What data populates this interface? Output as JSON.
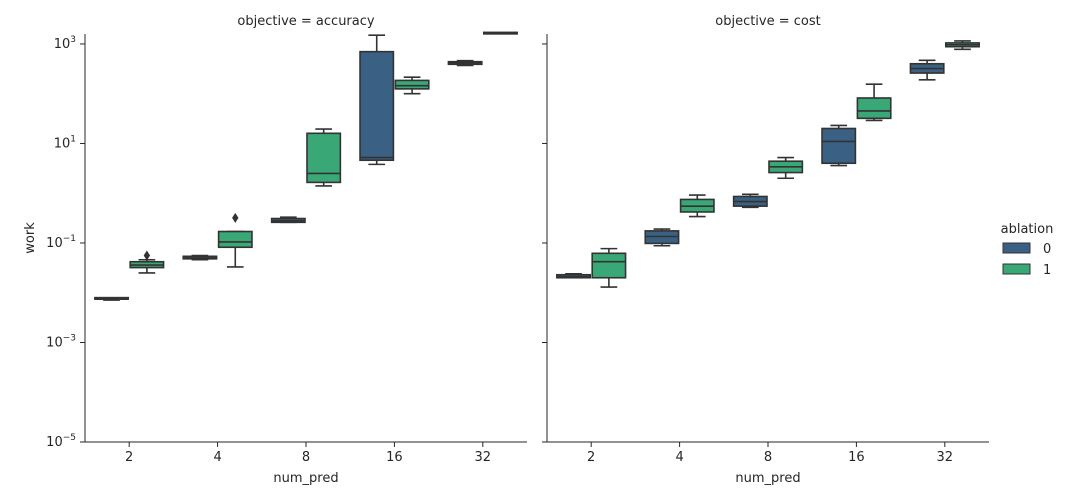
{
  "chart_data": {
    "type": "box",
    "y_scale": "log",
    "ylim_log10": [
      -5,
      3.2
    ],
    "y_ticks": [
      {
        "exp": -5,
        "label_base": "10",
        "label_exp": "−5"
      },
      {
        "exp": -3,
        "label_base": "10",
        "label_exp": "−3"
      },
      {
        "exp": -1,
        "label_base": "10",
        "label_exp": "−1"
      },
      {
        "exp": 1,
        "label_base": "10",
        "label_exp": "1"
      },
      {
        "exp": 3,
        "label_base": "10",
        "label_exp": "3"
      }
    ],
    "ylabel": "work",
    "xlabel": "num_pred",
    "categories": [
      "2",
      "4",
      "8",
      "16",
      "32"
    ],
    "legend": {
      "title": "ablation",
      "placement": "right",
      "entries": [
        {
          "label": "0",
          "color": "#3a6183"
        },
        {
          "label": "1",
          "color": "#3aa776"
        }
      ]
    },
    "panels": [
      {
        "title": "objective = accuracy",
        "boxes": [
          {
            "category": "2",
            "ablation": "0",
            "whisker_low": 0.0071,
            "q1": 0.0072,
            "median": 0.0074,
            "q3": 0.0077,
            "whisker_high": 0.0078,
            "outliers": []
          },
          {
            "category": "2",
            "ablation": "1",
            "whisker_low": 0.025,
            "q1": 0.032,
            "median": 0.036,
            "q3": 0.042,
            "whisker_high": 0.046,
            "outliers": [
              0.056
            ]
          },
          {
            "category": "4",
            "ablation": "0",
            "whisker_low": 0.046,
            "q1": 0.048,
            "median": 0.05,
            "q3": 0.054,
            "whisker_high": 0.056,
            "outliers": []
          },
          {
            "category": "4",
            "ablation": "1",
            "whisker_low": 0.033,
            "q1": 0.082,
            "median": 0.105,
            "q3": 0.17,
            "whisker_high": 0.17,
            "outliers": [
              0.32
            ]
          },
          {
            "category": "8",
            "ablation": "0",
            "whisker_low": 0.26,
            "q1": 0.26,
            "median": 0.28,
            "q3": 0.31,
            "whisker_high": 0.33,
            "outliers": []
          },
          {
            "category": "8",
            "ablation": "1",
            "whisker_low": 1.4,
            "q1": 1.65,
            "median": 2.5,
            "q3": 16.0,
            "whisker_high": 19.5,
            "outliers": []
          },
          {
            "category": "16",
            "ablation": "0",
            "whisker_low": 3.8,
            "q1": 4.6,
            "median": 5.2,
            "q3": 700,
            "whisker_high": 1500,
            "outliers": []
          },
          {
            "category": "16",
            "ablation": "1",
            "whisker_low": 100,
            "q1": 125,
            "median": 145,
            "q3": 185,
            "whisker_high": 215,
            "outliers": []
          },
          {
            "category": "32",
            "ablation": "0",
            "whisker_low": 370,
            "q1": 390,
            "median": 420,
            "q3": 440,
            "whisker_high": 460,
            "outliers": []
          },
          {
            "category": "32",
            "ablation": "1",
            "whisker_low": 1650,
            "q1": 1650,
            "median": 1650,
            "q3": 1650,
            "whisker_high": 1650,
            "outliers": []
          }
        ]
      },
      {
        "title": "objective = cost",
        "boxes": [
          {
            "category": "2",
            "ablation": "0",
            "whisker_low": 0.02,
            "q1": 0.02,
            "median": 0.021,
            "q3": 0.023,
            "whisker_high": 0.024,
            "outliers": []
          },
          {
            "category": "2",
            "ablation": "1",
            "whisker_low": 0.013,
            "q1": 0.02,
            "median": 0.042,
            "q3": 0.062,
            "whisker_high": 0.077,
            "outliers": []
          },
          {
            "category": "4",
            "ablation": "0",
            "whisker_low": 0.088,
            "q1": 0.098,
            "median": 0.135,
            "q3": 0.175,
            "whisker_high": 0.19,
            "outliers": []
          },
          {
            "category": "4",
            "ablation": "1",
            "whisker_low": 0.34,
            "q1": 0.42,
            "median": 0.55,
            "q3": 0.75,
            "whisker_high": 0.92,
            "outliers": []
          },
          {
            "category": "8",
            "ablation": "0",
            "whisker_low": 0.52,
            "q1": 0.55,
            "median": 0.68,
            "q3": 0.86,
            "whisker_high": 0.95,
            "outliers": []
          },
          {
            "category": "8",
            "ablation": "1",
            "whisker_low": 2.0,
            "q1": 2.6,
            "median": 3.4,
            "q3": 4.4,
            "whisker_high": 5.2,
            "outliers": []
          },
          {
            "category": "16",
            "ablation": "0",
            "whisker_low": 3.6,
            "q1": 4.0,
            "median": 11.0,
            "q3": 20.0,
            "whisker_high": 23.0,
            "outliers": []
          },
          {
            "category": "16",
            "ablation": "1",
            "whisker_low": 29,
            "q1": 32,
            "median": 45,
            "q3": 82,
            "whisker_high": 155,
            "outliers": []
          },
          {
            "category": "32",
            "ablation": "0",
            "whisker_low": 190,
            "q1": 260,
            "median": 320,
            "q3": 400,
            "whisker_high": 470,
            "outliers": []
          },
          {
            "category": "32",
            "ablation": "1",
            "whisker_low": 780,
            "q1": 880,
            "median": 960,
            "q3": 1050,
            "whisker_high": 1150,
            "outliers": []
          }
        ]
      }
    ]
  }
}
